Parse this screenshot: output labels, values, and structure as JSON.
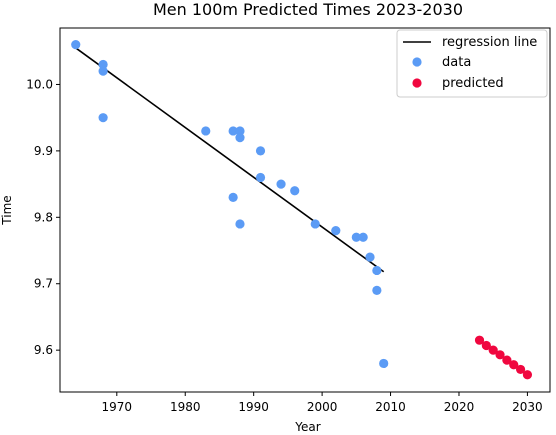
{
  "chart_data": {
    "type": "scatter",
    "title": "Men 100m Predicted Times 2023-2030",
    "xlabel": "Year",
    "ylabel": "Time",
    "xlim": [
      1961.7,
      2033.3
    ],
    "ylim": [
      9.537,
      10.085
    ],
    "x_ticks": [
      1970,
      1980,
      1990,
      2000,
      2010,
      2020,
      2030
    ],
    "y_ticks": [
      9.6,
      9.7,
      9.8,
      9.9,
      10.0
    ],
    "y_tick_labels": [
      "9.6",
      "9.7",
      "9.8",
      "9.9",
      "10.0"
    ],
    "grid": false,
    "legend_position": "top-right",
    "series": [
      {
        "name": "regression line",
        "kind": "line",
        "color": "#000000",
        "points": [
          [
            1964,
            10.055
          ],
          [
            2009,
            9.718
          ]
        ]
      },
      {
        "name": "data",
        "kind": "scatter",
        "color": "#5b9bf5",
        "points": [
          [
            1964,
            10.06
          ],
          [
            1968,
            10.03
          ],
          [
            1968,
            10.02
          ],
          [
            1968,
            9.95
          ],
          [
            1983,
            9.93
          ],
          [
            1987,
            9.93
          ],
          [
            1988,
            9.93
          ],
          [
            1988,
            9.92
          ],
          [
            1991,
            9.9
          ],
          [
            1987,
            9.83
          ],
          [
            1988,
            9.79
          ],
          [
            1991,
            9.86
          ],
          [
            1994,
            9.85
          ],
          [
            1996,
            9.84
          ],
          [
            1999,
            9.79
          ],
          [
            2002,
            9.78
          ],
          [
            2005,
            9.77
          ],
          [
            2006,
            9.77
          ],
          [
            2007,
            9.74
          ],
          [
            2008,
            9.72
          ],
          [
            2008,
            9.69
          ],
          [
            2009,
            9.58
          ]
        ]
      },
      {
        "name": "predicted",
        "kind": "scatter",
        "color": "#f0073f",
        "points": [
          [
            2023,
            9.615
          ],
          [
            2024,
            9.607
          ],
          [
            2025,
            9.6
          ],
          [
            2026,
            9.593
          ],
          [
            2027,
            9.585
          ],
          [
            2028,
            9.578
          ],
          [
            2029,
            9.571
          ],
          [
            2030,
            9.563
          ]
        ]
      }
    ]
  }
}
